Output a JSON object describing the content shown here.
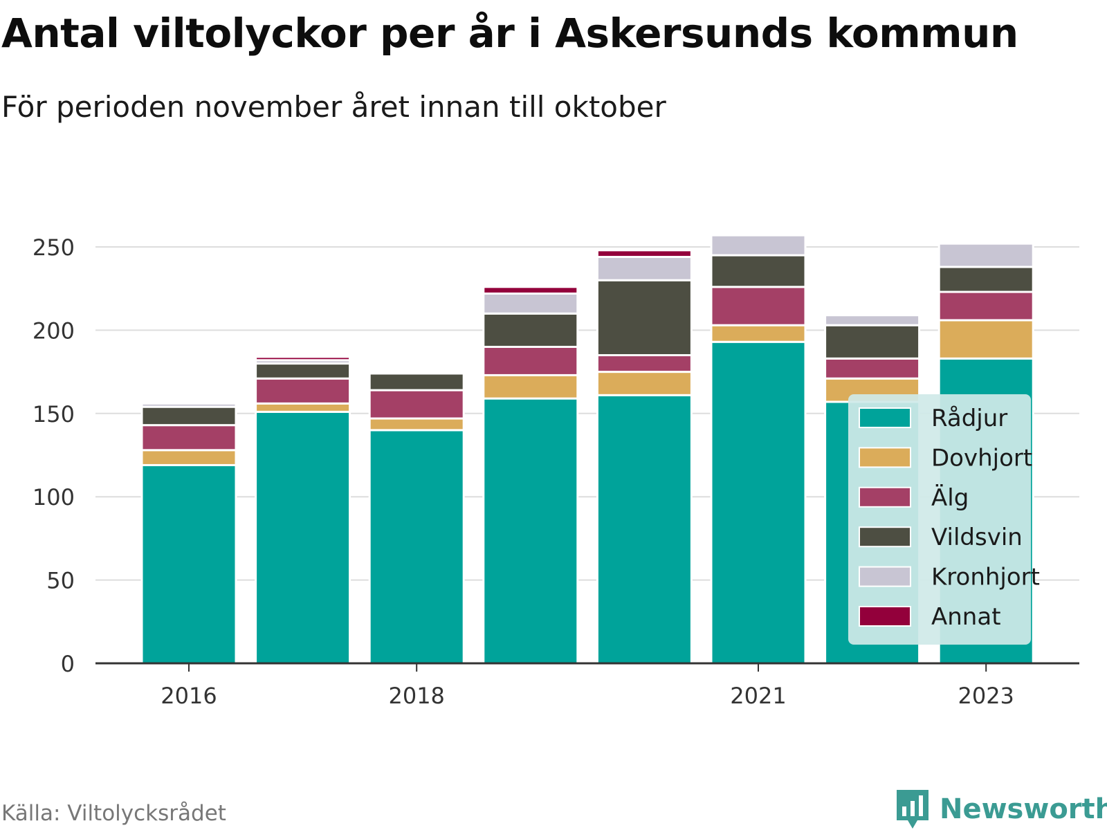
{
  "title": "Antal viltolyckor per år i Askersunds kommun",
  "subtitle": "För perioden november året innan till oktober",
  "source": "Källa: Viltolycksrådet",
  "brand": {
    "name": "Newsworthy",
    "icon": "newsworthy-logo-icon"
  },
  "chart_data": {
    "type": "bar",
    "stacked": true,
    "categories": [
      "2016",
      "2017",
      "2018",
      "2019",
      "2020",
      "2021",
      "2022",
      "2023"
    ],
    "x_tick_labels": [
      "2016",
      "",
      "2018",
      "",
      "",
      "2021",
      "",
      "2023"
    ],
    "y_ticks": [
      0,
      50,
      100,
      150,
      200,
      250
    ],
    "ylim": [
      0,
      265
    ],
    "grid": true,
    "legend_position": "bottom-right",
    "series": [
      {
        "name": "Rådjur",
        "color": "#00a39a",
        "values": [
          119,
          151,
          140,
          159,
          161,
          193,
          157,
          183
        ]
      },
      {
        "name": "Dovhjort",
        "color": "#dbac5a",
        "values": [
          9,
          5,
          7,
          14,
          14,
          10,
          14,
          23
        ]
      },
      {
        "name": "Älg",
        "color": "#a44066",
        "values": [
          15,
          15,
          17,
          17,
          10,
          23,
          12,
          17
        ]
      },
      {
        "name": "Vildsvin",
        "color": "#4d4e42",
        "values": [
          11,
          9,
          10,
          20,
          45,
          19,
          20,
          15
        ]
      },
      {
        "name": "Kronhjort",
        "color": "#c8c5d3",
        "values": [
          2,
          2,
          1,
          12,
          14,
          12,
          6,
          14
        ]
      },
      {
        "name": "Annat",
        "color": "#93003b",
        "values": [
          0,
          2,
          0,
          4,
          4,
          0,
          0,
          0
        ]
      }
    ]
  }
}
